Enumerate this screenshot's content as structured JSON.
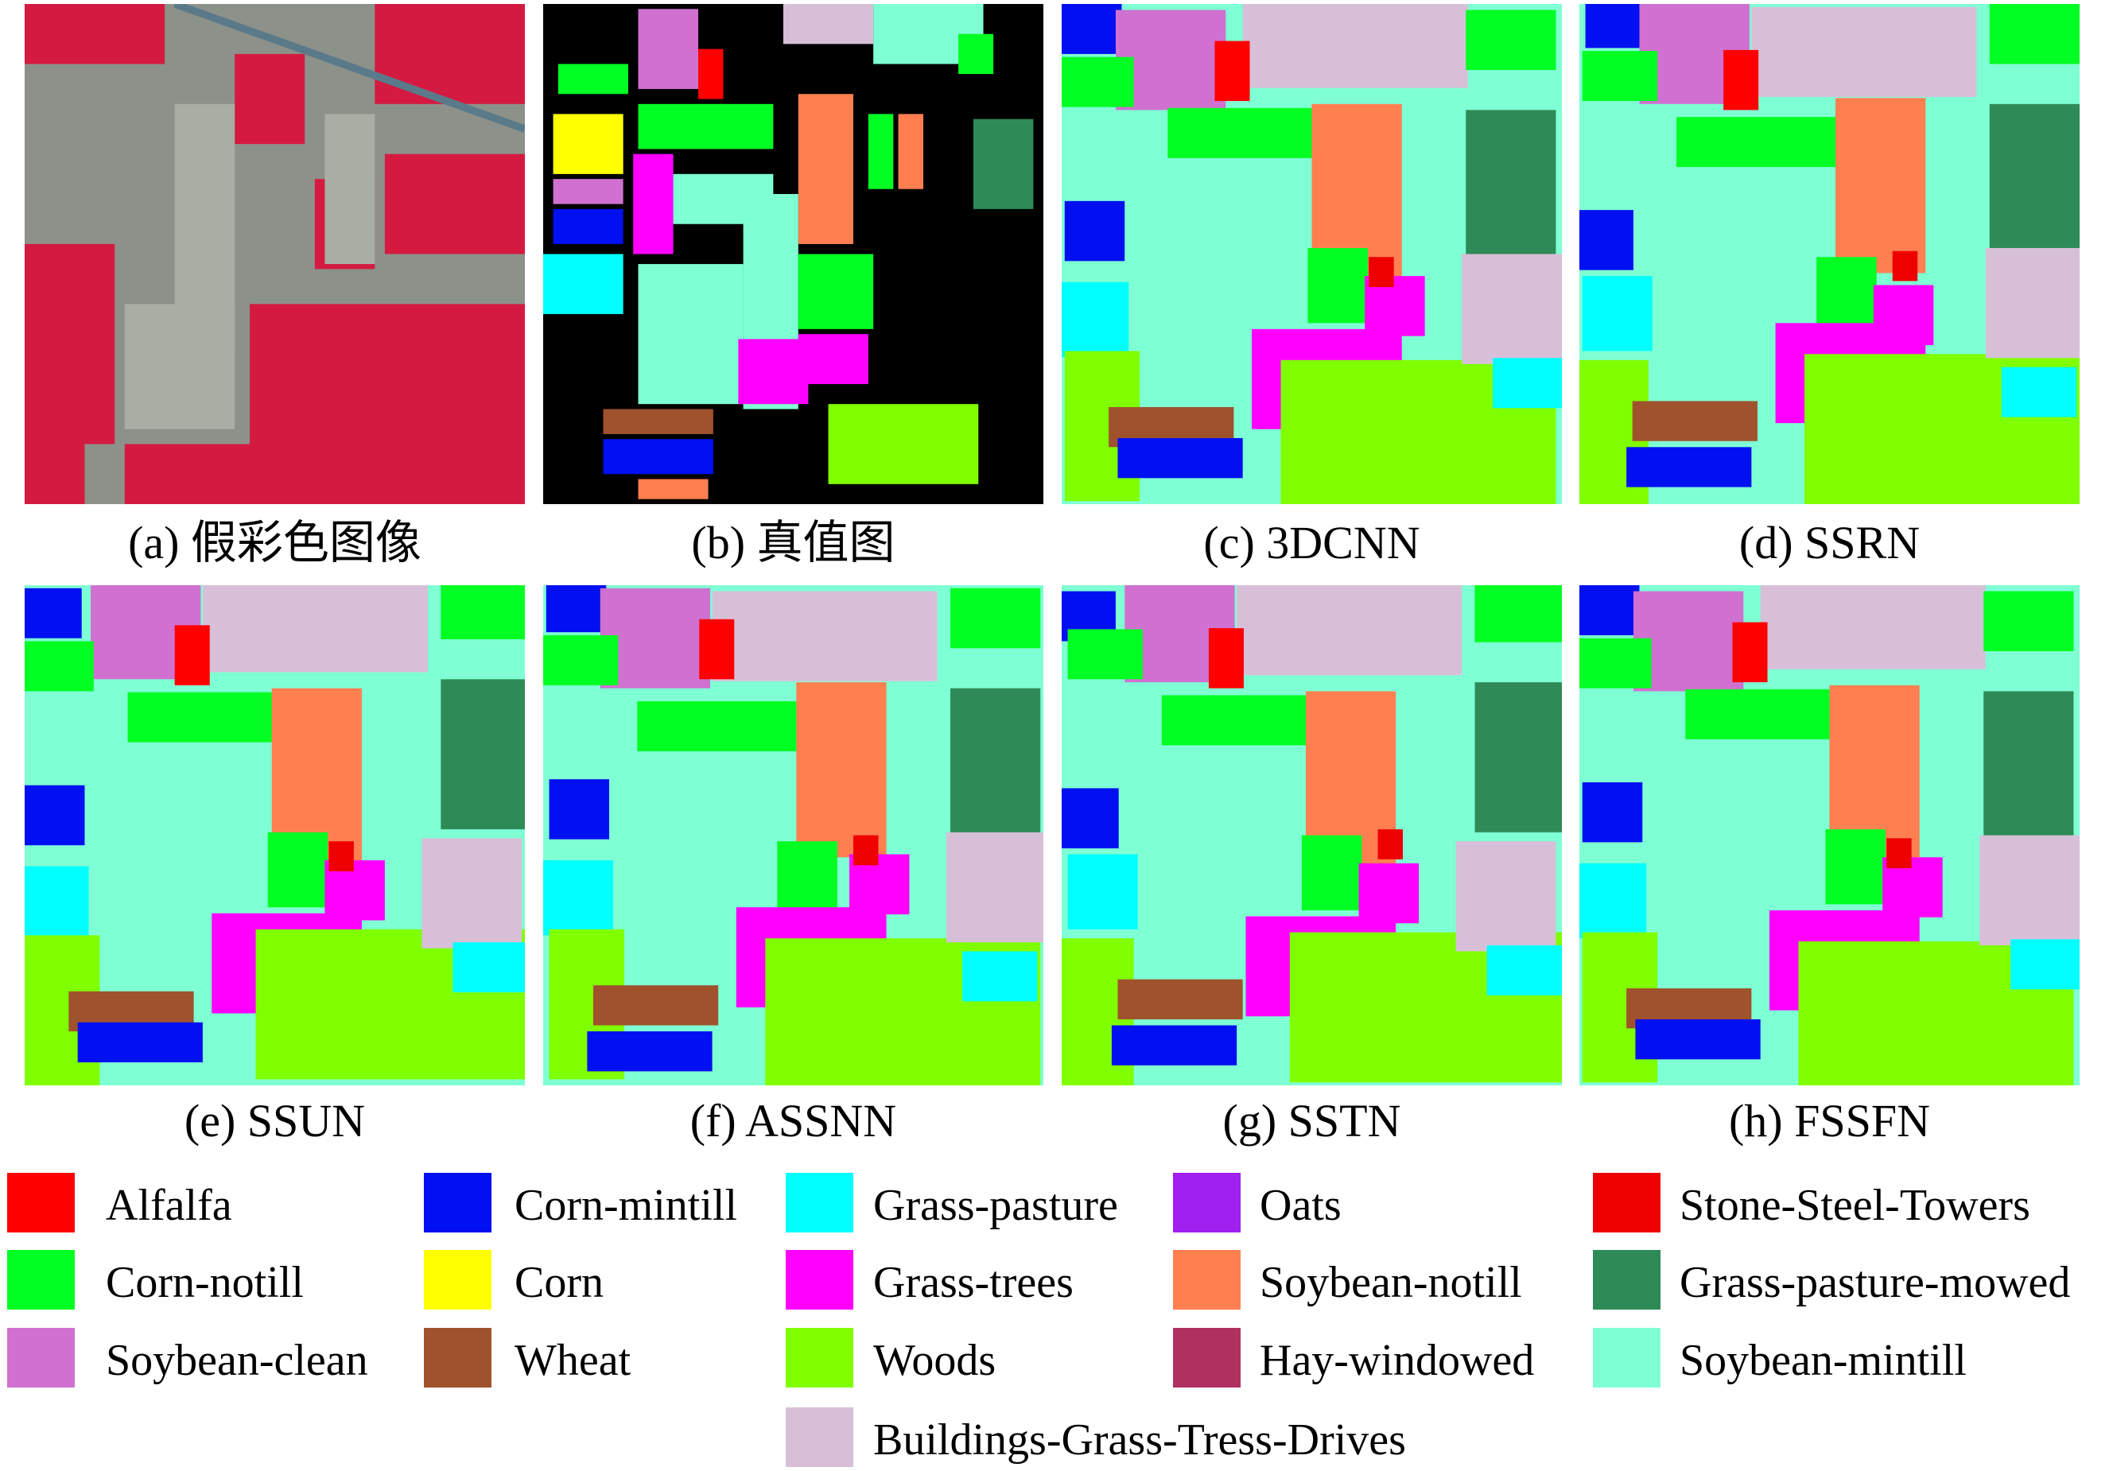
{
  "panels": [
    {
      "caption": "(a) 假彩色图像",
      "kind": "false-color-image"
    },
    {
      "caption": "(b) 真值图",
      "kind": "ground-truth-map"
    },
    {
      "caption": "(c) 3DCNN",
      "kind": "classification-map"
    },
    {
      "caption": "(d) SSRN",
      "kind": "classification-map"
    },
    {
      "caption": "(e) SSUN",
      "kind": "classification-map"
    },
    {
      "caption": "(f) ASSNN",
      "kind": "classification-map"
    },
    {
      "caption": "(g) SSTN",
      "kind": "classification-map"
    },
    {
      "caption": "(h) FSSFN",
      "kind": "classification-map"
    }
  ],
  "legend": [
    {
      "label": "Alfalfa",
      "color": "#FF0000"
    },
    {
      "label": "Corn-notill",
      "color": "#00FF22"
    },
    {
      "label": "Soybean-clean",
      "color": "#D070D0"
    },
    {
      "label": "Corn-mintill",
      "color": "#0010F0"
    },
    {
      "label": "Corn",
      "color": "#FFFF00"
    },
    {
      "label": "Wheat",
      "color": "#A0522D"
    },
    {
      "label": "Grass-pasture",
      "color": "#00FFFF"
    },
    {
      "label": "Grass-trees",
      "color": "#FF00FF"
    },
    {
      "label": "Woods",
      "color": "#7FFF00"
    },
    {
      "label": "Buildings-Grass-Tress-Drives",
      "color": "#D8BFD8"
    },
    {
      "label": "Oats",
      "color": "#A020F0"
    },
    {
      "label": "Soybean-notill",
      "color": "#FF7F50"
    },
    {
      "label": "Hay-windowed",
      "color": "#B03060"
    },
    {
      "label": "Stone-Steel-Towers",
      "color": "#EE0000"
    },
    {
      "label": "Grass-pasture-mowed",
      "color": "#2E8B57"
    },
    {
      "label": "Soybean-mintill",
      "color": "#7FFFD4"
    }
  ]
}
